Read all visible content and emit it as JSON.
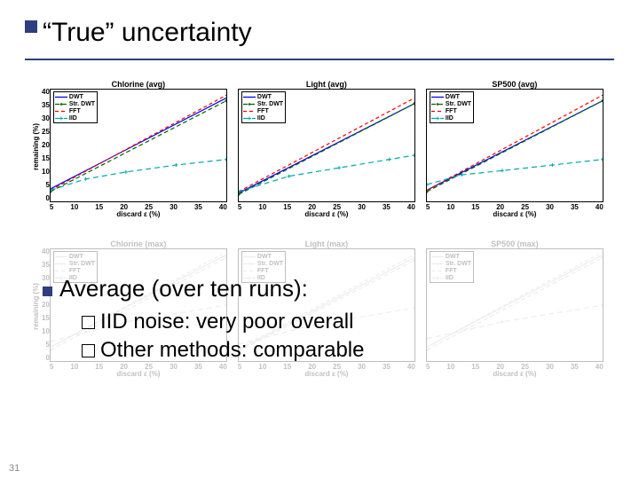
{
  "title": "“True” uncertainty",
  "page_number": "31",
  "ylabel": "remaining (%)",
  "xlabel": "discard ε (%)",
  "yticks": [
    "0",
    "5",
    "10",
    "15",
    "20",
    "25",
    "30",
    "35",
    "40"
  ],
  "xticks": [
    "5",
    "10",
    "15",
    "20",
    "25",
    "30",
    "35",
    "40"
  ],
  "xlim": [
    5,
    40
  ],
  "ylim": [
    0,
    40
  ],
  "legend": {
    "items": [
      {
        "label": "DWT",
        "color": "#0000ff",
        "dash": "0",
        "marker": "none"
      },
      {
        "label": "Str. DWT",
        "color": "#006400",
        "dash": "5,3",
        "marker": "dot"
      },
      {
        "label": "FFT",
        "color": "#ff0000",
        "dash": "4,3",
        "marker": "none"
      },
      {
        "label": "IID",
        "color": "#00aaaa",
        "dash": "6,4",
        "marker": "plus"
      }
    ]
  },
  "row1": {
    "panels": [
      {
        "title": "Chlorine (avg)",
        "series": [
          {
            "name": "DWT",
            "points": [
              [
                5,
                4.5
              ],
              [
                40,
                37
              ]
            ]
          },
          {
            "name": "Str. DWT",
            "points": [
              [
                5,
                3.5
              ],
              [
                40,
                36
              ]
            ]
          },
          {
            "name": "FFT",
            "points": [
              [
                5,
                4
              ],
              [
                40,
                38
              ]
            ]
          },
          {
            "name": "IID",
            "points": [
              [
                5,
                4
              ],
              [
                12,
                8
              ],
              [
                20,
                10.5
              ],
              [
                30,
                13
              ],
              [
                40,
                15
              ]
            ]
          }
        ]
      },
      {
        "title": "Light (avg)",
        "series": [
          {
            "name": "DWT",
            "points": [
              [
                5,
                3
              ],
              [
                40,
                35
              ]
            ]
          },
          {
            "name": "Str. DWT",
            "points": [
              [
                5,
                2.5
              ],
              [
                40,
                35
              ]
            ]
          },
          {
            "name": "FFT",
            "points": [
              [
                5,
                3.5
              ],
              [
                40,
                37
              ]
            ]
          },
          {
            "name": "IID",
            "points": [
              [
                5,
                3.5
              ],
              [
                15,
                9
              ],
              [
                25,
                12
              ],
              [
                35,
                15
              ],
              [
                40,
                16.5
              ]
            ]
          }
        ]
      },
      {
        "title": "SP500 (avg)",
        "series": [
          {
            "name": "DWT",
            "points": [
              [
                5,
                4
              ],
              [
                40,
                36
              ]
            ]
          },
          {
            "name": "Str. DWT",
            "points": [
              [
                5,
                3.5
              ],
              [
                40,
                36
              ]
            ]
          },
          {
            "name": "FFT",
            "points": [
              [
                5,
                4
              ],
              [
                40,
                38
              ]
            ]
          },
          {
            "name": "IID",
            "points": [
              [
                5,
                6
              ],
              [
                12,
                9.5
              ],
              [
                20,
                11
              ],
              [
                30,
                13
              ],
              [
                40,
                15
              ]
            ]
          }
        ]
      }
    ]
  },
  "row2": {
    "panels": [
      {
        "title": "Chlorine (max)",
        "series": [
          {
            "name": "DWT",
            "points": [
              [
                5,
                5
              ],
              [
                40,
                38
              ]
            ]
          },
          {
            "name": "Str. DWT",
            "points": [
              [
                5,
                4
              ],
              [
                40,
                37
              ]
            ]
          },
          {
            "name": "FFT",
            "points": [
              [
                5,
                5
              ],
              [
                40,
                39
              ]
            ]
          },
          {
            "name": "IID",
            "points": [
              [
                5,
                7
              ],
              [
                20,
                14
              ],
              [
                40,
                20
              ]
            ]
          }
        ]
      },
      {
        "title": "Light (max)",
        "series": [
          {
            "name": "DWT",
            "points": [
              [
                5,
                4
              ],
              [
                40,
                37
              ]
            ]
          },
          {
            "name": "Str. DWT",
            "points": [
              [
                5,
                3.5
              ],
              [
                40,
                36
              ]
            ]
          },
          {
            "name": "FFT",
            "points": [
              [
                5,
                4.5
              ],
              [
                40,
                38
              ]
            ]
          },
          {
            "name": "IID",
            "points": [
              [
                5,
                6
              ],
              [
                20,
                13
              ],
              [
                40,
                19
              ]
            ]
          }
        ]
      },
      {
        "title": "SP500 (max)",
        "series": [
          {
            "name": "DWT",
            "points": [
              [
                5,
                5
              ],
              [
                40,
                38
              ]
            ]
          },
          {
            "name": "Str. DWT",
            "points": [
              [
                5,
                4
              ],
              [
                40,
                37
              ]
            ]
          },
          {
            "name": "FFT",
            "points": [
              [
                5,
                5
              ],
              [
                40,
                39
              ]
            ]
          },
          {
            "name": "IID",
            "points": [
              [
                5,
                8
              ],
              [
                20,
                14
              ],
              [
                40,
                20
              ]
            ]
          }
        ]
      }
    ]
  },
  "bullet": "Average (over ten runs):",
  "sub1": "IID noise: very poor overall",
  "sub2": "Other methods: comparable",
  "colors": {
    "accent": "#2e3e7e",
    "background": "#ffffff"
  }
}
